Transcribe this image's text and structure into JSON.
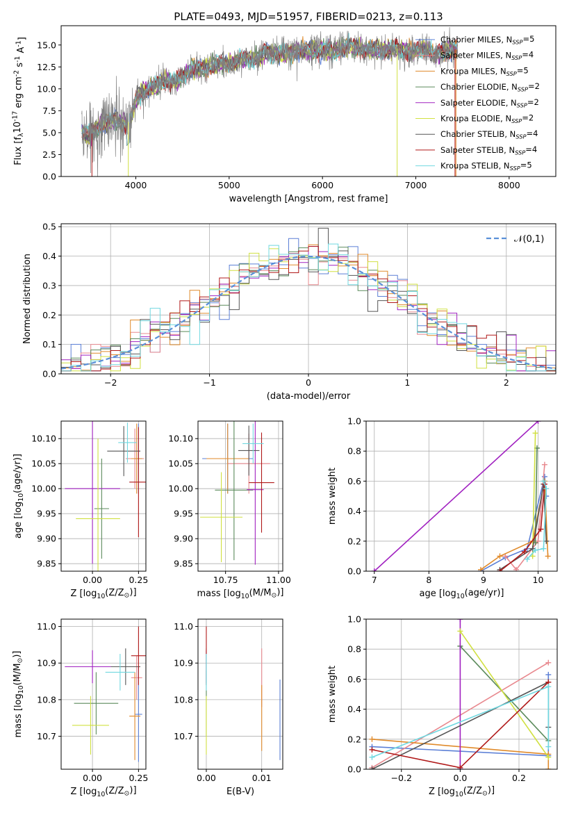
{
  "colors": {
    "chabrier_miles": "#5b7fd6",
    "salpeter_miles": "#e8888e",
    "kroupa_miles": "#e08a2a",
    "chabrier_elodie": "#5a8a5a",
    "salpeter_elodie": "#a020c0",
    "kroupa_elodie": "#d0e040",
    "chabrier_stelib": "#555555",
    "salpeter_stelib": "#b01818",
    "kroupa_stelib": "#70d8e0",
    "data": "#808080",
    "gauss": "#5a90d8"
  },
  "chart_data": [
    {
      "id": "spectrum",
      "type": "line",
      "title": "PLATE=0493, MJD=51957, FIBERID=0213, z=0.113",
      "xlabel": "wavelength [Angstrom, rest frame]",
      "ylabel": "Flux [f$_\\lambda$10$^{-17}$ erg cm$^{-2}$ s$^{-1}$ A$^{-1}$]",
      "xlim": [
        3200,
        8500
      ],
      "ylim": [
        0,
        17.2
      ],
      "xticks": [
        4000,
        5000,
        6000,
        7000,
        8000
      ],
      "yticks": [
        0.0,
        2.5,
        5.0,
        7.5,
        10.0,
        12.5,
        15.0
      ],
      "continuum": [
        [
          3420,
          5.2
        ],
        [
          3500,
          4.5
        ],
        [
          3600,
          5.8
        ],
        [
          3700,
          6.2
        ],
        [
          3800,
          6.3
        ],
        [
          3900,
          6.0
        ],
        [
          3950,
          6.6
        ],
        [
          4000,
          8.8
        ],
        [
          4100,
          9.9
        ],
        [
          4200,
          10.2
        ],
        [
          4300,
          11.0
        ],
        [
          4400,
          10.8
        ],
        [
          4500,
          11.3
        ],
        [
          4600,
          12.3
        ],
        [
          4700,
          12.2
        ],
        [
          4800,
          12.6
        ],
        [
          4900,
          12.9
        ],
        [
          5000,
          12.8
        ],
        [
          5100,
          13.2
        ],
        [
          5200,
          13.5
        ],
        [
          5300,
          13.4
        ],
        [
          5400,
          14.2
        ],
        [
          5500,
          14.0
        ],
        [
          5600,
          14.0
        ],
        [
          5700,
          14.3
        ],
        [
          5800,
          14.4
        ],
        [
          5900,
          14.3
        ],
        [
          6000,
          14.6
        ],
        [
          6100,
          14.2
        ],
        [
          6200,
          14.6
        ],
        [
          6300,
          14.8
        ],
        [
          6400,
          14.6
        ],
        [
          6500,
          14.5
        ],
        [
          6600,
          14.4
        ],
        [
          6700,
          14.4
        ],
        [
          6800,
          14.6
        ],
        [
          6900,
          14.3
        ],
        [
          7000,
          14.4
        ],
        [
          7100,
          14.6
        ],
        [
          7200,
          13.8
        ],
        [
          7300,
          14.2
        ],
        [
          7400,
          14.5
        ]
      ],
      "legend": [
        {
          "label": "Chabrier MILES, N$_{SSP}$=5",
          "color_key": "chabrier_miles"
        },
        {
          "label": "Salpeter MILES, N$_{SSP}$=4",
          "color_key": "salpeter_miles"
        },
        {
          "label": "Kroupa MILES, N$_{SSP}$=5",
          "color_key": "kroupa_miles"
        },
        {
          "label": "Chabrier ELODIE, N$_{SSP}$=2",
          "color_key": "chabrier_elodie"
        },
        {
          "label": "Salpeter ELODIE, N$_{SSP}$=2",
          "color_key": "salpeter_elodie"
        },
        {
          "label": "Kroupa ELODIE, N$_{SSP}$=2",
          "color_key": "kroupa_elodie"
        },
        {
          "label": "Chabrier STELIB, N$_{SSP}$=4",
          "color_key": "chabrier_stelib"
        },
        {
          "label": "Salpeter STELIB, N$_{SSP}$=4",
          "color_key": "salpeter_stelib"
        },
        {
          "label": "Kroupa STELIB, N$_{SSP}$=5",
          "color_key": "kroupa_stelib"
        }
      ],
      "legend_placement": "upper right",
      "grid": false
    },
    {
      "id": "residuals",
      "type": "step",
      "xlabel": "(data-model)/error",
      "ylabel": "Normed distribution",
      "xlim": [
        -2.5,
        2.5
      ],
      "ylim": [
        0,
        0.51
      ],
      "xticks": [
        -2,
        -1,
        0,
        1,
        2
      ],
      "yticks": [
        0.0,
        0.1,
        0.2,
        0.3,
        0.4,
        0.5
      ],
      "bin_width": 0.1,
      "gaussian_label": "$\\mathcal{N}(0,1)$",
      "legend_placement": "upper right",
      "grid": true
    },
    {
      "id": "age_Z",
      "type": "errorbar",
      "xlabel": "Z [log$_{10}$(Z/Z$_\\odot$)]",
      "ylabel": "age  [log$_{10}$(age/yr)]",
      "xlim": [
        -0.17,
        0.29
      ],
      "ylim": [
        9.835,
        10.135
      ],
      "xticks": [
        0.0,
        0.25
      ],
      "yticks": [
        9.85,
        9.9,
        9.95,
        10.0,
        10.05,
        10.1
      ],
      "points": [
        {
          "c": "chabrier_miles",
          "x": 0.25,
          "xe": 0.02,
          "y": 10.06,
          "ye": 0.07
        },
        {
          "c": "salpeter_miles",
          "x": 0.23,
          "xe": 0.05,
          "y": 10.06,
          "ye": 0.06
        },
        {
          "c": "kroupa_miles",
          "x": 0.24,
          "xe": 0.03,
          "y": 10.06,
          "ye": 0.07
        },
        {
          "c": "chabrier_elodie",
          "x": 0.05,
          "xe": 0.04,
          "y": 9.96,
          "ye": 0.1
        },
        {
          "c": "salpeter_elodie",
          "x": 0.0,
          "xe": 0.15,
          "y": 10.0,
          "ye": 0.15
        },
        {
          "c": "kroupa_elodie",
          "x": 0.03,
          "xe": 0.12,
          "y": 9.94,
          "ye": 0.16
        },
        {
          "c": "chabrier_stelib",
          "x": 0.17,
          "xe": 0.09,
          "y": 10.075,
          "ye": 0.05
        },
        {
          "c": "salpeter_stelib",
          "x": 0.25,
          "xe": 0.05,
          "y": 10.013,
          "ye": 0.11
        },
        {
          "c": "kroupa_stelib",
          "x": 0.19,
          "xe": 0.05,
          "y": 10.092,
          "ye": 0.04
        }
      ],
      "grid": true
    },
    {
      "id": "age_mass",
      "type": "errorbar",
      "xlabel": "mass [log$_{10}$(M/M$_\\odot$)]",
      "ylabel": "",
      "xlim": [
        10.62,
        11.02
      ],
      "ylim": [
        9.835,
        10.135
      ],
      "xticks": [
        10.75,
        11.0
      ],
      "yticks": [
        9.85,
        9.9,
        9.95,
        10.0,
        10.05,
        10.1
      ],
      "points": [
        {
          "c": "chabrier_miles",
          "x": 10.76,
          "xe": 0.12,
          "y": 10.06,
          "ye": 0.07
        },
        {
          "c": "salpeter_miles",
          "x": 10.86,
          "xe": 0.1,
          "y": 10.05,
          "ye": 0.06
        },
        {
          "c": "kroupa_miles",
          "x": 10.76,
          "xe": 0.1,
          "y": 10.06,
          "ye": 0.07
        },
        {
          "c": "chabrier_elodie",
          "x": 10.79,
          "xe": 0.09,
          "y": 9.997,
          "ye": 0.14
        },
        {
          "c": "salpeter_elodie",
          "x": 10.89,
          "xe": 0.04,
          "y": 9.998,
          "ye": 0.15
        },
        {
          "c": "kroupa_elodie",
          "x": 10.73,
          "xe": 0.1,
          "y": 9.943,
          "ye": 0.09
        },
        {
          "c": "chabrier_stelib",
          "x": 10.86,
          "xe": 0.05,
          "y": 10.076,
          "ye": 0.05
        },
        {
          "c": "salpeter_stelib",
          "x": 10.92,
          "xe": 0.06,
          "y": 10.012,
          "ye": 0.1
        },
        {
          "c": "kroupa_stelib",
          "x": 10.88,
          "xe": 0.05,
          "y": 10.09,
          "ye": 0.04
        }
      ],
      "grid": true
    },
    {
      "id": "weight_age",
      "type": "line",
      "xlabel": "age  [log$_{10}$(age/yr)]",
      "ylabel": "mass weight",
      "xlim": [
        6.85,
        10.35
      ],
      "ylim": [
        0,
        1.0
      ],
      "xticks": [
        7,
        8,
        9,
        10
      ],
      "yticks": [
        0.0,
        0.2,
        0.4,
        0.6,
        0.8,
        1.0
      ],
      "series": [
        {
          "c": "chabrier_miles",
          "pts": [
            [
              8.95,
              0.0
            ],
            [
              9.4,
              0.09
            ],
            [
              9.8,
              0.15
            ],
            [
              10.12,
              0.63
            ],
            [
              10.15,
              0.5
            ]
          ]
        },
        {
          "c": "salpeter_miles",
          "pts": [
            [
              9.4,
              0.1
            ],
            [
              9.6,
              0.01
            ],
            [
              10.0,
              0.2
            ],
            [
              10.12,
              0.71
            ]
          ]
        },
        {
          "c": "kroupa_miles",
          "pts": [
            [
              8.95,
              0.01
            ],
            [
              9.3,
              0.1
            ],
            [
              9.9,
              0.2
            ],
            [
              10.12,
              0.6
            ],
            [
              10.18,
              0.1
            ]
          ]
        },
        {
          "c": "chabrier_elodie",
          "pts": [
            [
              9.95,
              0.19
            ],
            [
              9.98,
              0.82
            ]
          ]
        },
        {
          "c": "salpeter_elodie",
          "pts": [
            [
              7.0,
              0.0
            ],
            [
              10.0,
              1.0
            ]
          ]
        },
        {
          "c": "kroupa_elodie",
          "pts": [
            [
              9.9,
              0.1
            ],
            [
              9.95,
              0.92
            ]
          ]
        },
        {
          "c": "chabrier_stelib",
          "pts": [
            [
              9.3,
              0.01
            ],
            [
              9.9,
              0.15
            ],
            [
              10.1,
              0.58
            ],
            [
              10.15,
              0.2
            ]
          ]
        },
        {
          "c": "salpeter_stelib",
          "pts": [
            [
              9.3,
              0.0
            ],
            [
              9.75,
              0.13
            ],
            [
              10.05,
              0.28
            ],
            [
              10.12,
              0.58
            ]
          ]
        },
        {
          "c": "kroupa_stelib",
          "pts": [
            [
              9.8,
              0.08
            ],
            [
              9.95,
              0.14
            ],
            [
              10.1,
              0.15
            ],
            [
              10.15,
              0.55
            ],
            [
              10.1,
              0.6
            ]
          ]
        }
      ],
      "grid": true
    },
    {
      "id": "mass_Z",
      "type": "errorbar",
      "xlabel": "Z [log$_{10}$(Z/Z$_\\odot$)]",
      "ylabel": "mass [log$_{10}$(M/M$_\\odot$)]",
      "xlim": [
        -0.17,
        0.29
      ],
      "ylim": [
        10.61,
        11.02
      ],
      "xticks": [
        0.0,
        0.25
      ],
      "yticks": [
        10.7,
        10.8,
        10.9,
        11.0
      ],
      "points": [
        {
          "c": "chabrier_miles",
          "x": 0.25,
          "xe": 0.02,
          "y": 10.76,
          "ye": 0.13
        },
        {
          "c": "salpeter_miles",
          "x": 0.24,
          "xe": 0.03,
          "y": 10.86,
          "ye": 0.06
        },
        {
          "c": "kroupa_miles",
          "x": 0.23,
          "xe": 0.03,
          "y": 10.755,
          "ye": 0.12
        },
        {
          "c": "chabrier_elodie",
          "x": 0.02,
          "xe": 0.12,
          "y": 10.79,
          "ye": 0.085
        },
        {
          "c": "salpeter_elodie",
          "x": 0.0,
          "xe": 0.15,
          "y": 10.89,
          "ye": 0.045
        },
        {
          "c": "kroupa_elodie",
          "x": -0.01,
          "xe": 0.1,
          "y": 10.73,
          "ye": 0.08
        },
        {
          "c": "chabrier_stelib",
          "x": 0.18,
          "xe": 0.08,
          "y": 10.89,
          "ye": 0.05
        },
        {
          "c": "salpeter_stelib",
          "x": 0.25,
          "xe": 0.04,
          "y": 10.92,
          "ye": 0.08
        },
        {
          "c": "kroupa_stelib",
          "x": 0.15,
          "xe": 0.08,
          "y": 10.875,
          "ye": 0.05
        }
      ],
      "grid": true
    },
    {
      "id": "mass_ebv",
      "type": "errorbar",
      "xlabel": "E(B-V)",
      "ylabel": "",
      "xlim": [
        -0.0015,
        0.0138
      ],
      "ylim": [
        10.61,
        11.02
      ],
      "xticks": [
        0.0,
        0.01
      ],
      "yticks": [
        10.7,
        10.8,
        10.9,
        11.0
      ],
      "points": [
        {
          "c": "chabrier_miles",
          "x": 0.0133,
          "xe": 0,
          "y": 10.745,
          "ye": 0.11
        },
        {
          "c": "salpeter_miles",
          "x": 0.01,
          "xe": 0,
          "y": 10.86,
          "ye": 0.08
        },
        {
          "c": "kroupa_miles",
          "x": 0.01,
          "xe": 0,
          "y": 10.75,
          "ye": 0.09
        },
        {
          "c": "chabrier_elodie",
          "x": 0.0,
          "xe": 0,
          "y": 10.79,
          "ye": 0.09
        },
        {
          "c": "salpeter_elodie",
          "x": 0.0,
          "xe": 0,
          "y": 10.89,
          "ye": 0.045
        },
        {
          "c": "kroupa_elodie",
          "x": 0.0,
          "xe": 0,
          "y": 10.73,
          "ye": 0.08
        },
        {
          "c": "chabrier_stelib",
          "x": 0.0,
          "xe": 0,
          "y": 10.89,
          "ye": 0.05
        },
        {
          "c": "salpeter_stelib",
          "x": 0.0,
          "xe": 0,
          "y": 10.92,
          "ye": 0.08
        },
        {
          "c": "kroupa_stelib",
          "x": 0.0,
          "xe": 0,
          "y": 10.875,
          "ye": 0.05
        }
      ],
      "grid": true
    },
    {
      "id": "weight_Z",
      "type": "line",
      "xlabel": "Z [log$_{10}$(Z/Z$_\\odot$)]",
      "ylabel": "mass weight",
      "xlim": [
        -0.32,
        0.33
      ],
      "ylim": [
        0,
        1.0
      ],
      "xticks": [
        -0.2,
        0.0,
        0.2
      ],
      "yticks": [
        0.0,
        0.2,
        0.4,
        0.6,
        0.8,
        1.0
      ],
      "series": [
        {
          "c": "chabrier_miles",
          "pts": [
            [
              -0.3,
              0.15
            ],
            [
              0.3,
              0.09
            ],
            [
              0.3,
              0.63
            ]
          ]
        },
        {
          "c": "salpeter_miles",
          "pts": [
            [
              -0.3,
              0.01
            ],
            [
              0.3,
              0.71
            ]
          ]
        },
        {
          "c": "kroupa_miles",
          "pts": [
            [
              -0.3,
              0.2
            ],
            [
              0.3,
              0.1
            ],
            [
              0.3,
              0.0
            ]
          ]
        },
        {
          "c": "chabrier_elodie",
          "pts": [
            [
              0.0,
              0.82
            ],
            [
              0.3,
              0.19
            ]
          ]
        },
        {
          "c": "salpeter_elodie",
          "pts": [
            [
              0.0,
              0.0
            ],
            [
              0.0,
              1.0
            ]
          ]
        },
        {
          "c": "kroupa_elodie",
          "pts": [
            [
              0.0,
              0.92
            ],
            [
              0.3,
              0.08
            ]
          ]
        },
        {
          "c": "chabrier_stelib",
          "pts": [
            [
              -0.3,
              0.0
            ],
            [
              0.3,
              0.58
            ],
            [
              0.3,
              0.28
            ]
          ]
        },
        {
          "c": "salpeter_stelib",
          "pts": [
            [
              -0.3,
              0.13
            ],
            [
              0.0,
              0.01
            ],
            [
              0.3,
              0.58
            ]
          ]
        },
        {
          "c": "kroupa_stelib",
          "pts": [
            [
              -0.3,
              0.08
            ],
            [
              0.3,
              0.55
            ],
            [
              0.3,
              0.15
            ]
          ]
        }
      ],
      "grid": true
    }
  ]
}
